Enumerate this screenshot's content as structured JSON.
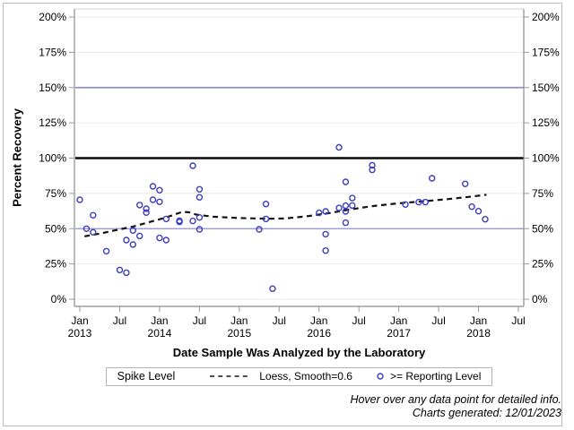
{
  "footer": {
    "line1": "Hover over any data point for detailed info.",
    "line2": "Charts generated: 12/01/2023"
  },
  "chart_data": {
    "type": "scatter",
    "title": "",
    "xlabel": "Date Sample Was Analyzed by the Laboratory",
    "ylabel": "Percent Recovery",
    "legend": {
      "title": "Spike Level",
      "items": [
        {
          "swatch": "dashed-line",
          "label": "Loess, Smooth=0.6"
        },
        {
          "swatch": "open-circle",
          "label": ">= Reporting Level"
        }
      ]
    },
    "colors": {
      "marker": "#3d3dc0",
      "reference_blue": "#8f8fce",
      "reference_black": "#0a0a0a",
      "axis": "#8c8c8c",
      "tick": "#9a9a9a",
      "grid": "#e9e9e9",
      "frame_light": "#d4d4d4",
      "loess": "#141414"
    },
    "y_axis": {
      "min": 0,
      "max": 200,
      "tick_step": 25,
      "tick_labels": [
        "0%",
        "25%",
        "50%",
        "75%",
        "100%",
        "125%",
        "150%",
        "175%",
        "200%"
      ],
      "mirrored_right": true,
      "grid": true
    },
    "x_axis": {
      "start": "2013-01",
      "end": "2018-07",
      "ticks": [
        {
          "m": 0,
          "line1": "Jan",
          "line2": "2013"
        },
        {
          "m": 6,
          "line1": "Jul",
          "line2": ""
        },
        {
          "m": 12,
          "line1": "Jan",
          "line2": "2014"
        },
        {
          "m": 18,
          "line1": "Jul",
          "line2": ""
        },
        {
          "m": 24,
          "line1": "Jan",
          "line2": "2015"
        },
        {
          "m": 30,
          "line1": "Jul",
          "line2": ""
        },
        {
          "m": 36,
          "line1": "Jan",
          "line2": "2016"
        },
        {
          "m": 42,
          "line1": "Jul",
          "line2": ""
        },
        {
          "m": 48,
          "line1": "Jan",
          "line2": "2017"
        },
        {
          "m": 54,
          "line1": "Jul",
          "line2": ""
        },
        {
          "m": 60,
          "line1": "Jan",
          "line2": "2018"
        },
        {
          "m": 66,
          "line1": "Jul",
          "line2": ""
        }
      ]
    },
    "reference_lines": [
      {
        "y": 150,
        "style": "thin-blue"
      },
      {
        "y": 100,
        "style": "thick-black"
      },
      {
        "y": 50,
        "style": "thin-blue"
      }
    ],
    "series": [
      {
        "name": ">= Reporting Level",
        "kind": "scatter",
        "points": [
          {
            "date": "2013-01",
            "pct": 70.5
          },
          {
            "date": "2013-02",
            "pct": 50.0
          },
          {
            "date": "2013-03",
            "pct": 47.4
          },
          {
            "date": "2013-03",
            "pct": 59.5
          },
          {
            "date": "2013-05",
            "pct": 34.0
          },
          {
            "date": "2013-07",
            "pct": 20.7
          },
          {
            "date": "2013-08",
            "pct": 41.9
          },
          {
            "date": "2013-08",
            "pct": 18.8
          },
          {
            "date": "2013-09",
            "pct": 38.7
          },
          {
            "date": "2013-09",
            "pct": 48.7
          },
          {
            "date": "2013-10",
            "pct": 44.8
          },
          {
            "date": "2013-10",
            "pct": 66.7
          },
          {
            "date": "2013-11",
            "pct": 64.1
          },
          {
            "date": "2013-11",
            "pct": 61.4
          },
          {
            "date": "2013-12",
            "pct": 70.5
          },
          {
            "date": "2013-12",
            "pct": 80.0
          },
          {
            "date": "2014-01",
            "pct": 69.0
          },
          {
            "date": "2014-01",
            "pct": 77.3
          },
          {
            "date": "2014-01",
            "pct": 43.4
          },
          {
            "date": "2014-02",
            "pct": 56.9
          },
          {
            "date": "2014-02",
            "pct": 41.9
          },
          {
            "date": "2014-04",
            "pct": 54.8
          },
          {
            "date": "2014-04",
            "pct": 55.6
          },
          {
            "date": "2014-06",
            "pct": 55.5
          },
          {
            "date": "2014-06",
            "pct": 94.6
          },
          {
            "date": "2014-07",
            "pct": 77.9
          },
          {
            "date": "2014-07",
            "pct": 72.2
          },
          {
            "date": "2014-07",
            "pct": 58.0
          },
          {
            "date": "2014-07",
            "pct": 49.5
          },
          {
            "date": "2015-04",
            "pct": 49.5
          },
          {
            "date": "2015-05",
            "pct": 67.5
          },
          {
            "date": "2015-05",
            "pct": 56.9
          },
          {
            "date": "2015-06",
            "pct": 7.5
          },
          {
            "date": "2016-01",
            "pct": 61.2
          },
          {
            "date": "2016-02",
            "pct": 62.2
          },
          {
            "date": "2016-02",
            "pct": 46.1
          },
          {
            "date": "2016-02",
            "pct": 34.5
          },
          {
            "date": "2016-04",
            "pct": 107.6
          },
          {
            "date": "2016-04",
            "pct": 64.7
          },
          {
            "date": "2016-05",
            "pct": 54.2
          },
          {
            "date": "2016-05",
            "pct": 83.2
          },
          {
            "date": "2016-05",
            "pct": 66.3
          },
          {
            "date": "2016-05",
            "pct": 62.2
          },
          {
            "date": "2016-06",
            "pct": 66.4
          },
          {
            "date": "2016-06",
            "pct": 71.7
          },
          {
            "date": "2016-09",
            "pct": 94.9
          },
          {
            "date": "2016-09",
            "pct": 91.7
          },
          {
            "date": "2017-02",
            "pct": 67.1
          },
          {
            "date": "2017-04",
            "pct": 68.8
          },
          {
            "date": "2017-05",
            "pct": 68.8
          },
          {
            "date": "2017-06",
            "pct": 85.7
          },
          {
            "date": "2017-11",
            "pct": 81.7
          },
          {
            "date": "2017-12",
            "pct": 65.6
          },
          {
            "date": "2018-01",
            "pct": 62.4
          },
          {
            "date": "2018-02",
            "pct": 56.7
          }
        ]
      },
      {
        "name": "Loess, Smooth=0.6",
        "kind": "dashed-line",
        "points_m_pct": [
          [
            0.7,
            44.6
          ],
          [
            3,
            46.5
          ],
          [
            5.5,
            49.0
          ],
          [
            8,
            51.5
          ],
          [
            10,
            54.0
          ],
          [
            13,
            58.0
          ],
          [
            15.5,
            62.0
          ],
          [
            16.5,
            61.5
          ],
          [
            17.5,
            60.0
          ],
          [
            20,
            58.5
          ],
          [
            24,
            57.5
          ],
          [
            28.5,
            57.0
          ],
          [
            31,
            57.3
          ],
          [
            34.5,
            59.0
          ],
          [
            37.5,
            61.0
          ],
          [
            40.5,
            63.5
          ],
          [
            44,
            66.0
          ],
          [
            48,
            68.0
          ],
          [
            52,
            69.5
          ],
          [
            55.5,
            71.0
          ],
          [
            58.5,
            72.5
          ],
          [
            61.2,
            74.0
          ]
        ]
      }
    ]
  }
}
